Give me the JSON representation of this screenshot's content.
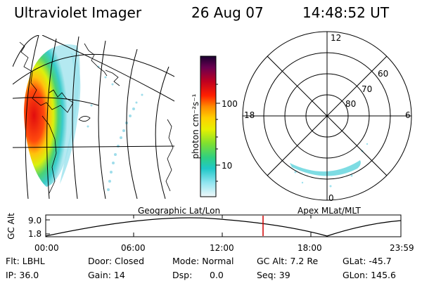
{
  "header": {
    "instrument": "Ultraviolet Imager",
    "date": "26 Aug 07",
    "time": "14:48:52 UT"
  },
  "left_panel": {
    "label": "Geographic Lat/Lon"
  },
  "colorbar": {
    "unit_label": "photon cm⁻²s⁻¹",
    "ticks": [
      "100",
      "10"
    ],
    "colors": [
      "#1a0030",
      "#5a0060",
      "#a0002a",
      "#e00000",
      "#ff4000",
      "#ff8c00",
      "#ffc000",
      "#f0f000",
      "#a0e800",
      "#40d040",
      "#00c8a0",
      "#40d8e0",
      "#a0e8f0",
      "#e0f4f8"
    ]
  },
  "polar_panel": {
    "label": "Apex MLat/MLT",
    "mlt_labels": {
      "top": "12",
      "left": "18",
      "right": "6",
      "bottom": "0"
    },
    "lat_labels": [
      "60",
      "70",
      "80"
    ]
  },
  "timeline": {
    "ylabel": "GC Alt",
    "ytick_top": "9.0",
    "ytick_bottom": "1.8",
    "xticks": [
      "00:00",
      "06:00",
      "12:00",
      "18:00",
      "23:59"
    ],
    "marker_time": "14:48:52",
    "marker_color": "#d00000"
  },
  "info": {
    "filter": "Flt: LBHL",
    "door": "Door: Closed",
    "mode": "Mode: Normal",
    "gc_alt": "GC Alt: 7.2 Re",
    "glat": "GLat: -45.7",
    "ip": "IP: 36.0",
    "gain": "Gain: 14",
    "dsp_label": "Dsp:",
    "dsp_value": "0.0",
    "seq": "Seq: 39",
    "glon": "GLon: 145.6"
  }
}
